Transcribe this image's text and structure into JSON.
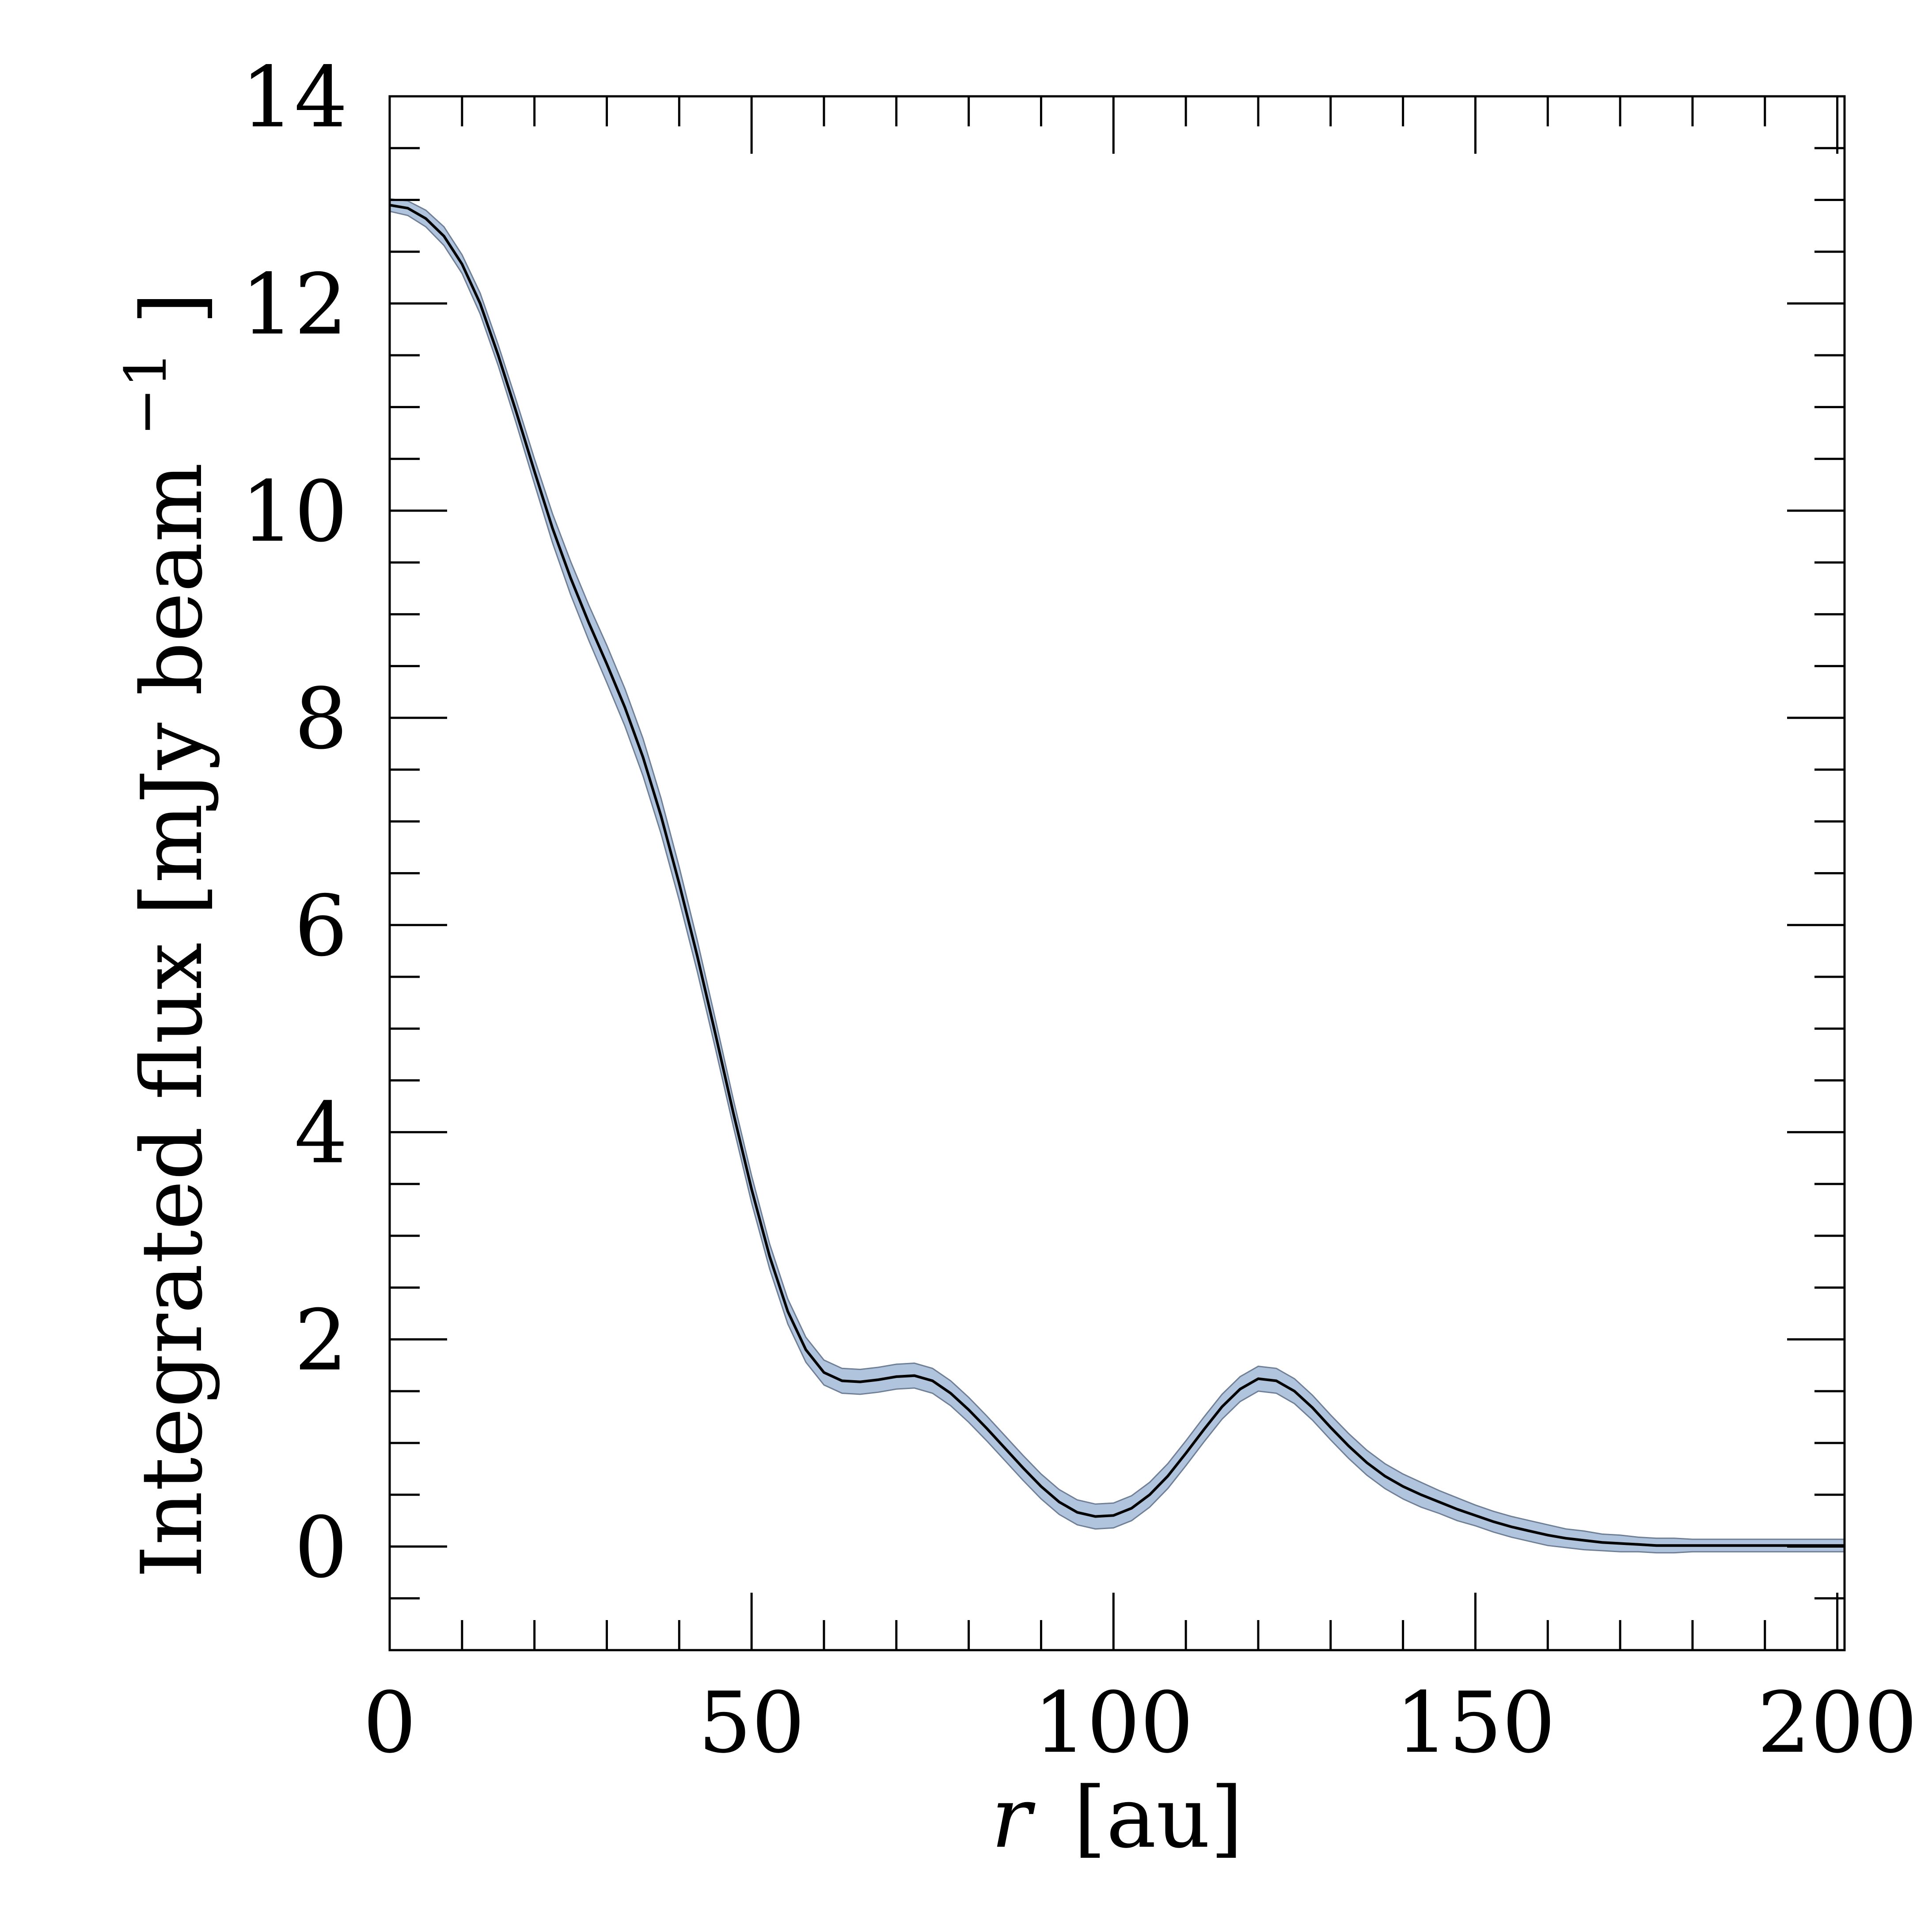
{
  "chart_data": {
    "type": "line",
    "xlabel": {
      "var": "r",
      "unit": "[au]"
    },
    "ylabel": {
      "prefix": "Integrated flux [mJy beam",
      "sup": "−1",
      "suffix": "]"
    },
    "xlim": [
      0,
      201
    ],
    "ylim": [
      -1,
      14
    ],
    "x_ticks": [
      0,
      50,
      100,
      150,
      200
    ],
    "y_ticks": [
      0,
      2,
      4,
      6,
      8,
      10,
      12,
      14
    ],
    "x_minor_step": 10,
    "y_minor_step": 0.5,
    "band_color": "#b0c4de",
    "line_color": "#000000",
    "series": [
      {
        "x": [
          0,
          2.5,
          5,
          7.5,
          10,
          12.5,
          15,
          17.5,
          20,
          22.5,
          25,
          27.5,
          30,
          32.5,
          35,
          37.5,
          40,
          42.5,
          45,
          47.5,
          50,
          52.5,
          55,
          57.5,
          60,
          62.5,
          65,
          67.5,
          70,
          72.5,
          75,
          77.5,
          80,
          82.5,
          85,
          87.5,
          90,
          92.5,
          95,
          97.5,
          100,
          102.5,
          105,
          107.5,
          110,
          112.5,
          115,
          117.5,
          120,
          122.5,
          125,
          127.5,
          130,
          132.5,
          135,
          137.5,
          140,
          142.5,
          145,
          147.5,
          150,
          152.5,
          155,
          157.5,
          160,
          162.5,
          165,
          167.5,
          170,
          172.5,
          175,
          177.5,
          180,
          182.5,
          185,
          187.5,
          190,
          192.5,
          195,
          197.5,
          200,
          201
        ],
        "y": [
          12.95,
          12.92,
          12.82,
          12.65,
          12.38,
          12.0,
          11.5,
          10.95,
          10.38,
          9.83,
          9.35,
          8.92,
          8.52,
          8.1,
          7.62,
          7.05,
          6.4,
          5.7,
          4.95,
          4.18,
          3.45,
          2.8,
          2.27,
          1.9,
          1.68,
          1.6,
          1.59,
          1.61,
          1.64,
          1.65,
          1.6,
          1.48,
          1.32,
          1.14,
          0.95,
          0.76,
          0.58,
          0.43,
          0.33,
          0.29,
          0.3,
          0.37,
          0.5,
          0.68,
          0.9,
          1.13,
          1.35,
          1.52,
          1.62,
          1.6,
          1.5,
          1.34,
          1.15,
          0.97,
          0.81,
          0.68,
          0.58,
          0.5,
          0.43,
          0.36,
          0.3,
          0.24,
          0.19,
          0.15,
          0.11,
          0.08,
          0.06,
          0.04,
          0.03,
          0.02,
          0.01,
          0.01,
          0.01,
          0.01,
          0.01,
          0.01,
          0.01,
          0.01,
          0.01,
          0.01,
          0.01,
          0.01
        ],
        "err": [
          0.06,
          0.07,
          0.08,
          0.09,
          0.09,
          0.1,
          0.1,
          0.11,
          0.12,
          0.14,
          0.16,
          0.17,
          0.18,
          0.18,
          0.18,
          0.17,
          0.16,
          0.15,
          0.14,
          0.13,
          0.13,
          0.12,
          0.12,
          0.12,
          0.12,
          0.12,
          0.12,
          0.12,
          0.12,
          0.12,
          0.12,
          0.12,
          0.12,
          0.12,
          0.12,
          0.12,
          0.12,
          0.12,
          0.12,
          0.12,
          0.12,
          0.12,
          0.12,
          0.12,
          0.12,
          0.12,
          0.12,
          0.12,
          0.12,
          0.12,
          0.12,
          0.12,
          0.12,
          0.12,
          0.12,
          0.12,
          0.12,
          0.12,
          0.11,
          0.11,
          0.1,
          0.1,
          0.1,
          0.1,
          0.1,
          0.09,
          0.09,
          0.08,
          0.08,
          0.07,
          0.07,
          0.07,
          0.06,
          0.06,
          0.06,
          0.06,
          0.06,
          0.06,
          0.06,
          0.06,
          0.06,
          0.06
        ]
      }
    ]
  }
}
